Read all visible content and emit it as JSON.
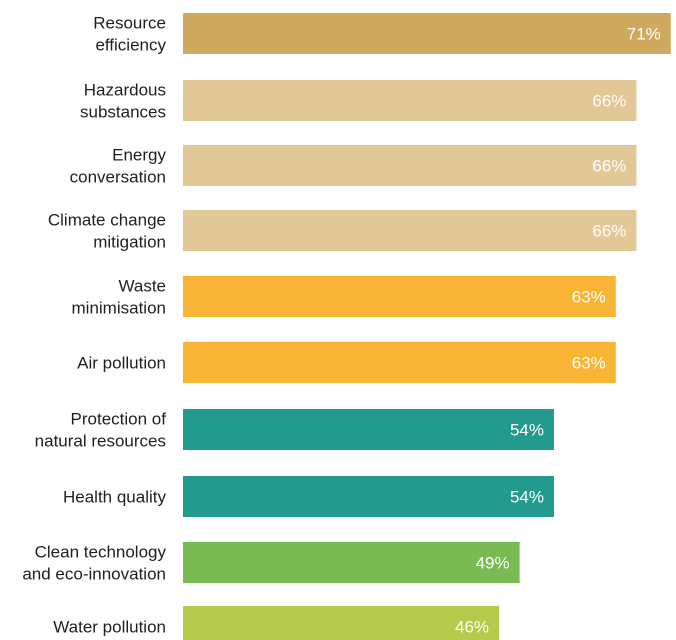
{
  "chart_data": {
    "type": "bar",
    "orientation": "horizontal",
    "categories": [
      [
        "Resource",
        "efficiency"
      ],
      [
        "Hazardous",
        "substances"
      ],
      [
        "Energy",
        "conversation"
      ],
      [
        "Climate change",
        "mitigation"
      ],
      [
        "Waste",
        "minimisation"
      ],
      [
        "Air pollution"
      ],
      [
        "Protection of",
        "natural resources"
      ],
      [
        "Health quality"
      ],
      [
        "Clean technology",
        "and eco-innovation"
      ],
      [
        "Water pollution"
      ]
    ],
    "values": [
      71,
      66,
      66,
      66,
      63,
      63,
      54,
      54,
      49,
      46
    ],
    "value_labels": [
      "71%",
      "66%",
      "66%",
      "66%",
      "63%",
      "63%",
      "54%",
      "54%",
      "49%",
      "46%"
    ],
    "colors": [
      "#cfaa5e",
      "#e1c896",
      "#e1c896",
      "#e1c896",
      "#f8b535",
      "#f8b535",
      "#239a8e",
      "#239a8e",
      "#7aba52",
      "#b5c94a"
    ],
    "unit": "%",
    "grid": false,
    "legend": "none"
  }
}
